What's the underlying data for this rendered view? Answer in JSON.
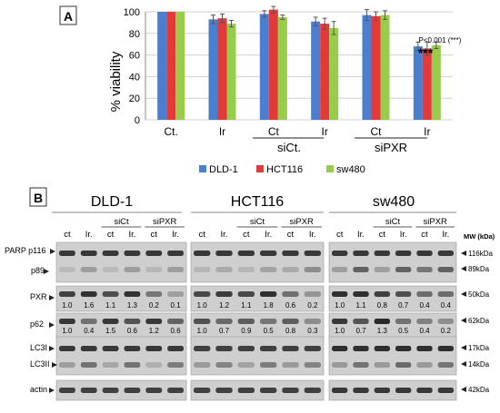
{
  "panel_a": {
    "label": "A",
    "ylabel": "% viability",
    "significance_text": "P<0.001 (***)",
    "stars": "***",
    "group_labels": [
      "siCt.",
      "siPXR"
    ],
    "legend": [
      {
        "name": "DLD-1",
        "color": "#4a7fd0"
      },
      {
        "name": "HCT116",
        "color": "#e23a3a"
      },
      {
        "name": "sw480",
        "color": "#9acc4c"
      }
    ]
  },
  "chart_data": {
    "type": "bar",
    "categories": [
      "Ct.",
      "Ir",
      "Ct",
      "Ir",
      "Ct",
      "Ir"
    ],
    "series": [
      {
        "name": "DLD-1",
        "color": "#4a7fd0",
        "values": [
          100,
          93,
          98,
          91,
          97,
          68
        ],
        "errors": [
          0,
          4,
          3,
          4,
          5,
          4
        ]
      },
      {
        "name": "HCT116",
        "color": "#e23a3a",
        "values": [
          100,
          94,
          102,
          89,
          96,
          66
        ],
        "errors": [
          0,
          4,
          3,
          5,
          4,
          6
        ]
      },
      {
        "name": "sw480",
        "color": "#9acc4c",
        "values": [
          100,
          89,
          95,
          85,
          97,
          69
        ],
        "errors": [
          0,
          3,
          2,
          6,
          4,
          3
        ]
      }
    ],
    "ylim": [
      0,
      100
    ],
    "yticks": [
      0,
      20,
      40,
      60,
      80,
      100
    ],
    "ylabel": "% viability",
    "grid": true,
    "legend": "bottom"
  },
  "panel_b": {
    "label": "B",
    "mw_header": "MW (kDa)",
    "cell_lines": [
      "DLD-1",
      "HCT116",
      "sw480"
    ],
    "group_headers": [
      "siCt",
      "siPXR"
    ],
    "lane_labels": [
      "ct",
      "Ir.",
      "ct",
      "Ir.",
      "ct",
      "Ir."
    ],
    "rows": [
      {
        "label": "PARP p116",
        "mw": "116kDa"
      },
      {
        "label": "p89",
        "mw": "89kDa"
      },
      {
        "label": "PXR",
        "mw": "50kDa"
      },
      {
        "label": "p62",
        "mw": "62kDa"
      },
      {
        "label": "LC3I",
        "mw": "17kDa"
      },
      {
        "label": "LC3II",
        "mw": "14kDa"
      },
      {
        "label": "actin",
        "mw": "42kDa"
      }
    ],
    "quant": {
      "pxr": [
        [
          "1.0",
          "1.6",
          "1.1",
          "1.3",
          "0.2",
          "0.1"
        ],
        [
          "1.0",
          "1.2",
          "1.1",
          "1.8",
          "0.6",
          "0.2"
        ],
        [
          "1.0",
          "1.1",
          "0.8",
          "0.7",
          "0.4",
          "0.4"
        ]
      ],
      "p62": [
        [
          "1.0",
          "0.4",
          "1.5",
          "0.6",
          "1.2",
          "0.6"
        ],
        [
          "1.0",
          "0.7",
          "0.9",
          "0.5",
          "0.8",
          "0.3"
        ],
        [
          "1.0",
          "0.7",
          "1.3",
          "0.5",
          "0.4",
          "0.2"
        ]
      ]
    }
  }
}
